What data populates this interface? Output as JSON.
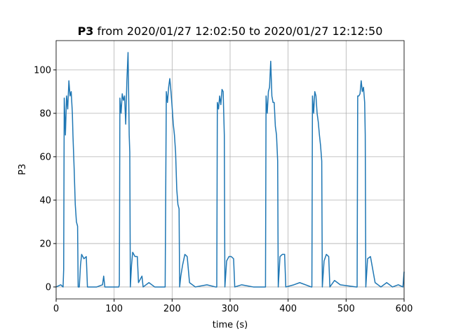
{
  "chart_data": {
    "type": "line",
    "title": {
      "bold": "P3",
      "text": "from 2020/01/27 12:02:50 to 2020/01/27 12:12:50"
    },
    "xlabel": "time (s)",
    "ylabel": "P3",
    "xlim": [
      0,
      600
    ],
    "ylim": [
      -5.5,
      113.5
    ],
    "xticks": [
      0,
      100,
      200,
      300,
      400,
      500,
      600
    ],
    "yticks": [
      0,
      20,
      40,
      60,
      80,
      100
    ],
    "grid": true,
    "x": [
      0,
      8,
      12,
      13,
      14,
      16,
      18,
      20,
      22,
      24,
      26,
      28,
      29,
      31,
      33,
      35,
      37,
      38,
      40,
      42,
      44,
      48,
      52,
      54,
      70,
      80,
      82,
      84,
      100,
      108,
      109,
      110,
      112,
      114,
      116,
      118,
      120,
      122,
      124,
      125,
      126,
      127,
      128,
      130,
      132,
      136,
      140,
      142,
      148,
      150,
      160,
      170,
      188,
      190,
      192,
      194,
      196,
      198,
      200,
      202,
      204,
      206,
      208,
      210,
      212,
      213,
      215,
      218,
      222,
      226,
      230,
      240,
      260,
      275,
      277,
      278,
      280,
      282,
      284,
      286,
      288,
      290,
      291,
      294,
      298,
      302,
      306,
      308,
      320,
      340,
      360,
      361,
      362,
      364,
      366,
      368,
      370,
      372,
      374,
      376,
      378,
      380,
      382,
      383,
      386,
      390,
      394,
      396,
      410,
      420,
      440,
      441,
      442,
      444,
      446,
      448,
      450,
      452,
      454,
      456,
      458,
      459,
      462,
      466,
      470,
      472,
      480,
      490,
      518,
      519,
      520,
      522,
      524,
      526,
      528,
      530,
      532,
      533,
      534,
      537,
      542,
      546,
      550,
      560,
      570,
      580,
      590,
      598,
      600
    ],
    "series": [
      {
        "name": "P3",
        "color": "#1f77b4",
        "values": [
          0,
          1,
          0,
          8,
          87,
          70,
          88,
          82,
          95,
          88,
          90,
          80,
          70,
          55,
          38,
          30,
          28,
          0,
          0,
          10,
          15,
          13,
          14,
          0,
          0,
          1,
          5,
          0,
          0,
          0,
          1,
          87,
          80,
          89,
          86,
          88,
          75,
          95,
          108,
          90,
          70,
          62,
          0,
          10,
          16,
          14,
          14,
          2,
          5,
          0,
          2,
          0,
          0,
          90,
          85,
          92,
          96,
          90,
          83,
          75,
          70,
          62,
          45,
          38,
          36,
          0,
          5,
          10,
          15,
          14,
          2,
          0,
          1,
          0,
          0,
          85,
          82,
          88,
          84,
          91,
          90,
          70,
          0,
          12,
          14,
          14,
          13,
          0,
          1,
          0,
          0,
          0,
          88,
          80,
          90,
          92,
          104,
          88,
          85,
          85,
          74,
          70,
          58,
          0,
          14,
          15,
          15,
          0,
          1,
          2,
          0,
          0,
          88,
          80,
          90,
          88,
          80,
          76,
          70,
          65,
          58,
          0,
          12,
          15,
          14,
          0,
          3,
          1,
          0,
          0,
          88,
          88,
          89,
          95,
          90,
          92,
          85,
          70,
          0,
          13,
          14,
          8,
          2,
          0,
          2,
          0,
          1,
          0,
          7
        ]
      }
    ]
  }
}
